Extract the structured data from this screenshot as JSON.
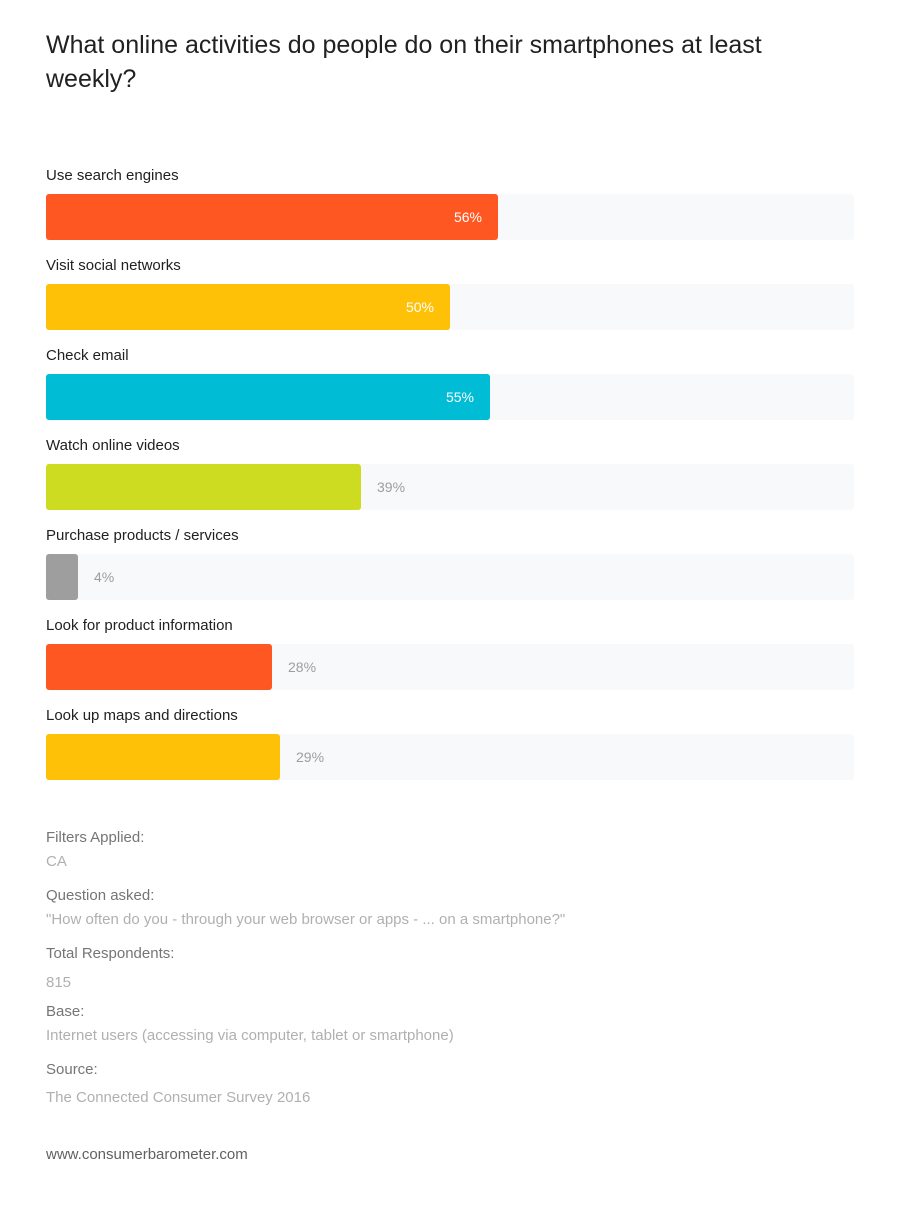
{
  "title": "What online activities do people do on their smartphones at least weekly?",
  "chart_data": {
    "type": "bar",
    "orientation": "horizontal",
    "categories": [
      "Use search engines",
      "Visit social networks",
      "Check email",
      "Watch online videos",
      "Purchase products / services",
      "Look for product information",
      "Look up maps and directions"
    ],
    "values": [
      56,
      50,
      55,
      39,
      4,
      28,
      29
    ],
    "value_labels": [
      "56%",
      "50%",
      "55%",
      "39%",
      "4%",
      "28%",
      "29%"
    ],
    "colors": [
      "#ff5722",
      "#ffc107",
      "#00bcd4",
      "#cddc20",
      "#9e9e9e",
      "#ff5722",
      "#ffc107"
    ],
    "xlim": [
      0,
      100
    ],
    "unit": "%",
    "track_color": "#f8f9fa"
  },
  "meta": {
    "filters_label": "Filters Applied:",
    "filters_value": "CA",
    "question_label": "Question asked:",
    "question_value": "\"How often do you - through your web browser or apps - ... on a smartphone?\"",
    "respondents_label": "Total Respondents:",
    "respondents_value": "815",
    "base_label": "Base:",
    "base_value": "Internet users (accessing via computer, tablet or smartphone)",
    "source_label": "Source:",
    "source_value": "The Connected Consumer Survey 2016"
  },
  "footer": "www.consumerbarometer.com"
}
